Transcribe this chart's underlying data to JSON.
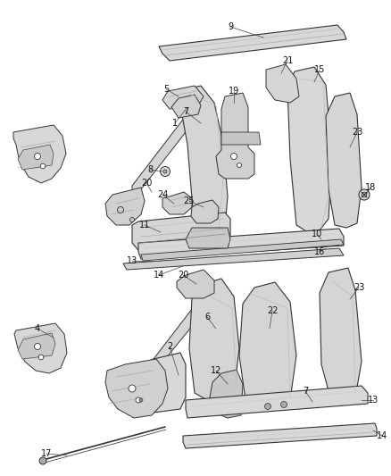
{
  "background_color": "#ffffff",
  "line_color": "#2a2a2a",
  "figsize": [
    4.38,
    5.33
  ],
  "dpi": 100,
  "label_fs": 7.0,
  "lc": "#1a1a1a",
  "part_fill": "#e8e8e8",
  "part_edge": "#333333",
  "part_fill2": "#d0d0d0",
  "shadow_fill": "#c0c0c0"
}
